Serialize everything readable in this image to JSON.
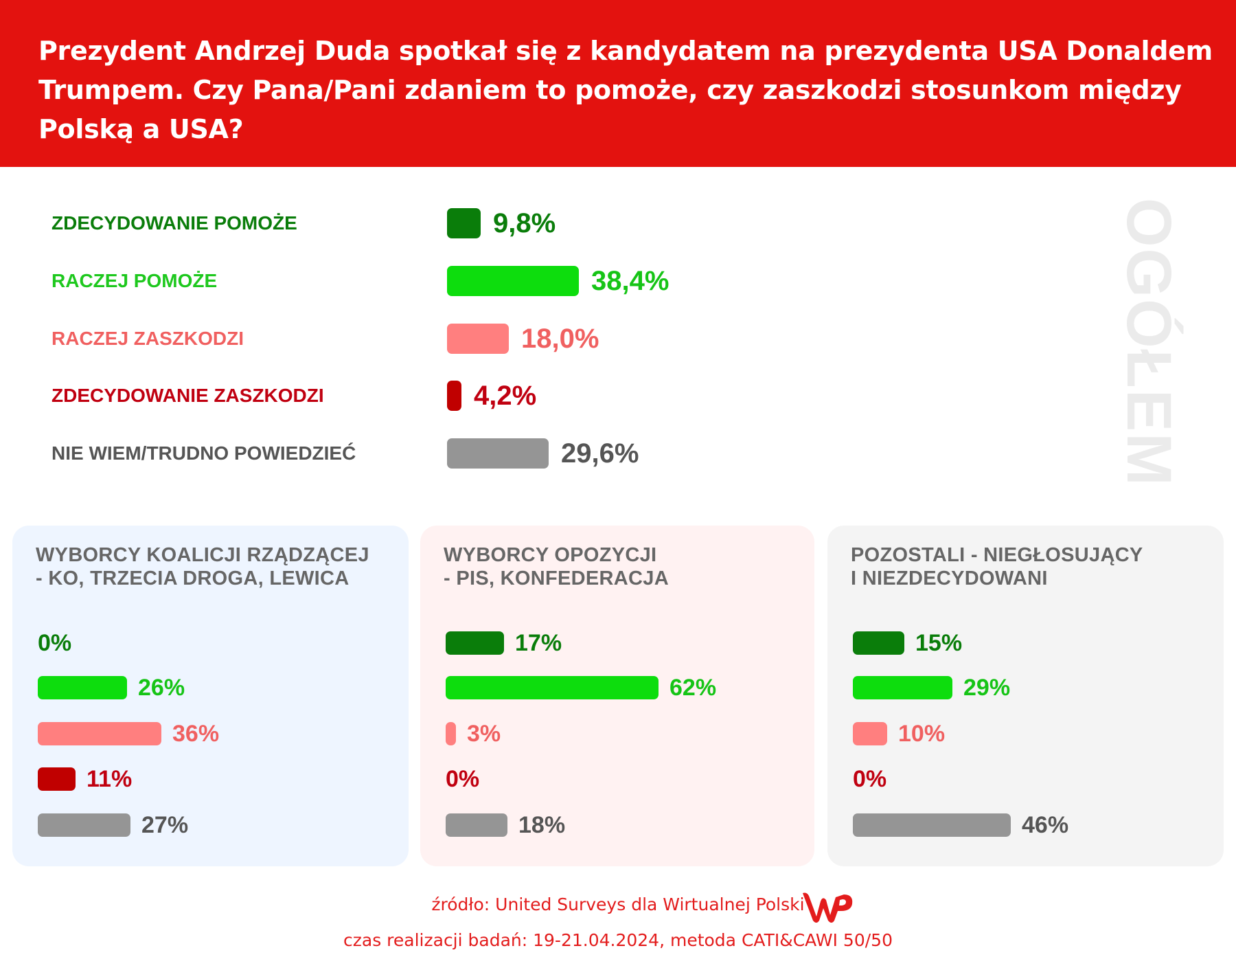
{
  "title": "Prezydent Andrzej Duda spotkał się z kandydatem na prezydenta USA Donaldem Trumpem. Czy Pana/Pani zdaniem to pomoże, czy zaszkodzi stosunkom między Polską a USA?",
  "watermark": "OGÓŁEM",
  "colors": {
    "header": "#e3120f",
    "strongly_helps": "#0a7d0a",
    "rather_helps": "#0ddd0d",
    "rather_harms": "#ff7f7f",
    "strongly_harms": "#c00000",
    "dont_know": "#959595"
  },
  "chart_data": [
    {
      "type": "bar",
      "orientation": "horizontal",
      "title": "OGÓŁEM",
      "categories": [
        "ZDECYDOWANIE POMOŻE",
        "RACZEJ POMOŻE",
        "RACZEJ ZASZKODZI",
        "ZDECYDOWANIE ZASZKODZI",
        "NIE WIEM/TRUDNO POWIEDZIEĆ"
      ],
      "values": [
        9.8,
        38.4,
        18.0,
        4.2,
        29.6
      ],
      "labels": [
        "9,8%",
        "38,4%",
        "18,0%",
        "4,2%",
        "29,6%"
      ]
    },
    {
      "type": "bar",
      "orientation": "horizontal",
      "title": "WYBORCY KOALICJI RZĄDZĄCEJ\n- KO, TRZECIA DROGA, LEWICA",
      "values": [
        0,
        26,
        36,
        11,
        27
      ],
      "labels": [
        "0%",
        "26%",
        "36%",
        "11%",
        "27%"
      ],
      "background": "#eef5ff"
    },
    {
      "type": "bar",
      "orientation": "horizontal",
      "title": "WYBORCY OPOZYCJI\n- PIS, KONFEDERACJA",
      "values": [
        17,
        62,
        3,
        0,
        18
      ],
      "labels": [
        "17%",
        "62%",
        "3%",
        "0%",
        "18%"
      ],
      "background": "#fff2f2"
    },
    {
      "type": "bar",
      "orientation": "horizontal",
      "title": "POZOSTALI - NIEGŁOSUJĄCY\nI NIEZDECYDOWANI",
      "values": [
        15,
        29,
        10,
        0,
        46
      ],
      "labels": [
        "15%",
        "29%",
        "10%",
        "0%",
        "46%"
      ],
      "background": "#f4f4f4"
    }
  ],
  "footer": {
    "source": "źródło: United Surveys dla Wirtualnej Polski",
    "method": "czas realizacji badań: 19-21.04.2024, metoda CATI&CAWI 50/50",
    "logo": "WP"
  }
}
